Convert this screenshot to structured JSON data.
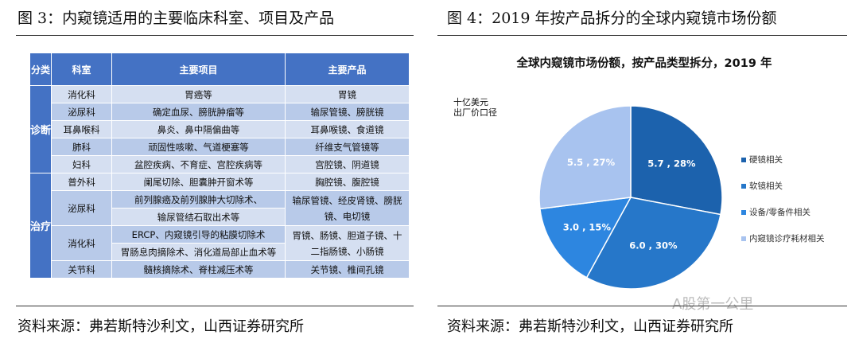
{
  "left": {
    "title": "图 3：内窥镜适用的主要临床科室、项目及产品",
    "source": "资料来源：弗若斯特沙利文，山西证券研究所",
    "headers": [
      "分类",
      "科室",
      "主要项目",
      "主要产品"
    ],
    "cat_diag": "诊断",
    "cat_treat": "治疗",
    "rows": [
      {
        "dept": "消化科",
        "items": [
          "胃癌等"
        ],
        "products": "胃镜"
      },
      {
        "dept": "泌尿科",
        "items": [
          "确定血尿、膀胱肿瘤等"
        ],
        "products": "输尿管镜、膀胱镜"
      },
      {
        "dept": "耳鼻喉科",
        "items": [
          "鼻炎、鼻中隔偏曲等"
        ],
        "products": "耳鼻喉镜、食道镜"
      },
      {
        "dept": "肺科",
        "items": [
          "顽固性咳嗽、气道梗塞等"
        ],
        "products": "纤维支气管镜等"
      },
      {
        "dept": "妇科",
        "items": [
          "盆腔疾病、不育症、宫腔疾病等"
        ],
        "products": "宫腔镜、阴道镜"
      },
      {
        "dept": "普外科",
        "items": [
          "阑尾切除、胆囊肿开窗术等"
        ],
        "products": "胸腔镜、腹腔镜"
      },
      {
        "dept": "泌尿科",
        "items": [
          "前列腺癌及前列腺肿大切除术、",
          "输尿管结石取出术等"
        ],
        "products": "输尿管镜、经皮肾镜、膀胱镜、电切镜"
      },
      {
        "dept": "消化科",
        "items": [
          "ERCP、内窥镜引导的粘膜切除术",
          "胃肠息肉摘除术、消化道局部止血术等"
        ],
        "products": "胃镜、肠镜、胆道子镜、十二指肠镜、小肠镜"
      },
      {
        "dept": "关节科",
        "items": [
          "髓核摘除术、脊柱减压术等"
        ],
        "products": "关节镜、椎间孔镜"
      }
    ]
  },
  "right": {
    "title": "图 4：2019 年按产品拆分的全球内窥镜市场份额",
    "source": "资料来源：弗若斯特沙利文，山西证券研究所",
    "watermark": "A股第一公里"
  },
  "chart_data": {
    "type": "pie",
    "title": "全球内窥镜市场份额，按产品类型拆分，2019 年",
    "unit_line1": "十亿美元",
    "unit_line2": "出厂价口径",
    "legend_position": "right",
    "slices": [
      {
        "name": "硬镜相关",
        "value": 5.7,
        "percent": 28,
        "label": "5.7 , 28%",
        "color": "#1c62ad"
      },
      {
        "name": "软镜相关",
        "value": 6.0,
        "percent": 30,
        "label": "6.0 , 30%",
        "color": "#2677c9"
      },
      {
        "name": "设备/零备件相关",
        "value": 3.0,
        "percent": 15,
        "label": "3.0 , 15%",
        "color": "#2d86e0"
      },
      {
        "name": "内窥镜诊疗耗材相关",
        "value": 5.5,
        "percent": 27,
        "label": "5.5 , 27%",
        "color": "#a8c3ef"
      }
    ]
  }
}
